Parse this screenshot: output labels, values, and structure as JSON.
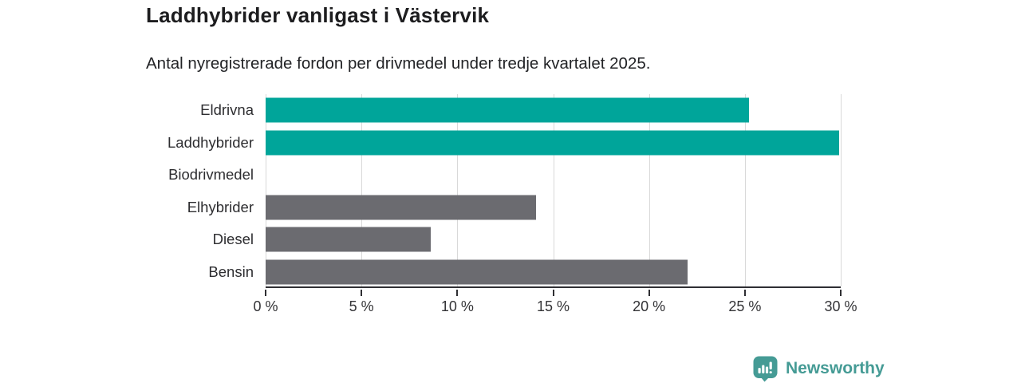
{
  "header": {
    "title": "Laddhybrider vanligast i Västervik",
    "subtitle": "Antal nyregistrerade fordon per drivmedel under tredje kvartalet 2025."
  },
  "chart_data": {
    "type": "bar",
    "orientation": "horizontal",
    "title": "Laddhybrider vanligast i Västervik",
    "subtitle": "Antal nyregistrerade fordon per drivmedel under tredje kvartalet 2025.",
    "categories": [
      "Eldrivna",
      "Laddhybrider",
      "Biodrivmedel",
      "Elhybrider",
      "Diesel",
      "Bensin"
    ],
    "values": [
      25.2,
      29.9,
      0,
      14.1,
      8.6,
      22.0
    ],
    "bar_colors": [
      "#00a59a",
      "#00a59a",
      "#6b6b70",
      "#6b6b70",
      "#6b6b70",
      "#6b6b70"
    ],
    "highlight_color": "#00a59a",
    "default_color": "#6b6b70",
    "xlabel": "",
    "ylabel": "",
    "xlim": [
      0,
      30
    ],
    "x_ticks": [
      {
        "value": 0,
        "label": "0 %"
      },
      {
        "value": 5,
        "label": "5 %"
      },
      {
        "value": 10,
        "label": "10 %"
      },
      {
        "value": 15,
        "label": "15 %"
      },
      {
        "value": 20,
        "label": "20 %"
      },
      {
        "value": 25,
        "label": "25 %"
      },
      {
        "value": 30,
        "label": "30 %"
      }
    ],
    "grid": "vertical-gridlines",
    "legend": "none"
  },
  "footer": {
    "brand_name": "Newsworthy",
    "brand_color": "#459b95",
    "logo_icon": "newsworthy-chart-badge-icon"
  }
}
